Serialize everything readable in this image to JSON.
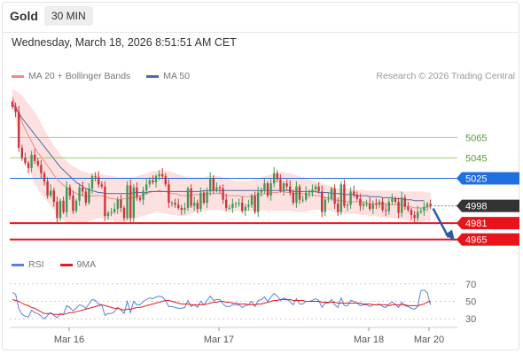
{
  "header": {
    "symbol": "Gold",
    "timeframe": "30 MIN",
    "datetime": "Wednesday, March 18, 2026 8:51:51 AM CET"
  },
  "credit": "Research © 2026 Trading Central",
  "colors": {
    "up": "#3c9a52",
    "down": "#c8363a",
    "ma20": "#f08a88",
    "ma50": "#4a6aa8",
    "band": "#fde0e0",
    "resistance": "#9bd06b",
    "pivot": "#1f6fe0",
    "support": "#e8141a",
    "last": "#333333",
    "arrow": "#2a5aa8",
    "rsi": "#5b7fe0",
    "rsi_ma": "#e01e1e"
  },
  "chart_data": [
    {
      "type": "candlestick",
      "legend": [
        {
          "name": "MA 20 + Bollinger Bands",
          "color": "#f08a88"
        },
        {
          "name": "MA 50",
          "color": "#4a6aa8"
        }
      ],
      "x_ticks": [
        "Mar 16",
        "Mar 17",
        "Mar 18",
        "Mar 20"
      ],
      "y_range": [
        4956,
        5113
      ],
      "levels": [
        {
          "value": 5065,
          "label": "5065",
          "kind": "resistance"
        },
        {
          "value": 5045,
          "label": "5045",
          "kind": "resistance"
        },
        {
          "value": 5025,
          "label": "5025",
          "kind": "pivot"
        },
        {
          "value": 4998,
          "label": "4998",
          "kind": "last"
        },
        {
          "value": 4981,
          "label": "4981",
          "kind": "support"
        },
        {
          "value": 4965,
          "label": "4965",
          "kind": "support"
        }
      ],
      "closes": [
        5095,
        5090,
        5055,
        5045,
        5040,
        5035,
        5048,
        5042,
        5038,
        5030,
        5022,
        5008,
        5013,
        5002,
        4986,
        5003,
        4992,
        5016,
        5008,
        4993,
        5003,
        5016,
        5012,
        5001,
        5015,
        5027,
        5026,
        5019,
        5017,
        4988,
        4991,
        4992,
        4995,
        5004,
        4996,
        4986,
        5018,
        4986,
        5016,
        5006,
        5004,
        5013,
        5019,
        5023,
        5021,
        5027,
        5029,
        5027,
        5019,
        5001,
        5001,
        4999,
        4996,
        4994,
        4996,
        5015,
        4998,
        5001,
        4995,
        5011,
        5001,
        5012,
        5025,
        5013,
        5016,
        5015,
        5004,
        4996,
        4996,
        5000,
        5000,
        5001,
        4993,
        4997,
        4999,
        5008,
        4992,
        5011,
        5013,
        5020,
        5008,
        5020,
        5030,
        5024,
        5013,
        5020,
        5017,
        5011,
        5001,
        5017,
        5004,
        5004,
        5011,
        5011,
        5014,
        5017,
        5012,
        4992,
        5004,
        5005,
        5015,
        5000,
        4992,
        5019,
        4998,
        4999,
        5012,
        5009,
        5005,
        4998,
        5000,
        5000,
        4995,
        5000,
        4999,
        5002,
        4994,
        4993,
        5002,
        5005,
        5002,
        4991,
        5006,
        4997,
        4994,
        4989,
        4986,
        4992,
        4993,
        4997,
        5000,
        4998
      ],
      "ma20": [
        5105,
        5096,
        5088,
        5080,
        5073,
        5067,
        5061,
        5055,
        5050,
        5046,
        5042,
        5037,
        5033,
        5028,
        5024,
        5021,
        5018,
        5016,
        5014,
        5012,
        5010,
        5009,
        5008,
        5007,
        5007,
        5008,
        5008,
        5008,
        5008,
        5007,
        5006,
        5005,
        5005,
        5004,
        5004,
        5005,
        5005,
        5006,
        5006,
        5007,
        5008,
        5009,
        5010,
        5011,
        5012,
        5012,
        5013,
        5012,
        5012,
        5011,
        5010,
        5010,
        5009,
        5008,
        5008,
        5008,
        5008,
        5009,
        5009,
        5009,
        5009,
        5010,
        5010,
        5010,
        5010,
        5010,
        5009,
        5008,
        5008,
        5008,
        5008,
        5008,
        5007,
        5007,
        5007,
        5008,
        5008,
        5009,
        5009,
        5010,
        5010,
        5011,
        5011,
        5011,
        5012,
        5012,
        5011,
        5011,
        5010,
        5010,
        5010,
        5010,
        5009,
        5009,
        5009,
        5008,
        5008,
        5007,
        5006,
        5006,
        5005,
        5004,
        5003,
        5003,
        5003,
        5002,
        5002,
        5002,
        5002,
        5002,
        5002,
        5001,
        5000,
        5000,
        5000,
        5000,
        5000,
        5000,
        4999,
        4999,
        4999,
        4999,
        4999,
        4998,
        4997,
        4997,
        4996,
        4996,
        4996,
        4996,
        4997,
        4997
      ],
      "bb_upper": [
        5112,
        5111,
        5109,
        5106,
        5102,
        5098,
        5094,
        5090,
        5085,
        5079,
        5073,
        5067,
        5062,
        5057,
        5052,
        5048,
        5045,
        5042,
        5039,
        5037,
        5035,
        5033,
        5032,
        5031,
        5030,
        5030,
        5030,
        5029,
        5029,
        5028,
        5028,
        5027,
        5027,
        5026,
        5026,
        5026,
        5026,
        5026,
        5026,
        5027,
        5028,
        5029,
        5030,
        5031,
        5032,
        5032,
        5033,
        5033,
        5032,
        5032,
        5031,
        5030,
        5029,
        5028,
        5027,
        5026,
        5026,
        5026,
        5026,
        5026,
        5026,
        5027,
        5027,
        5027,
        5027,
        5027,
        5026,
        5025,
        5024,
        5023,
        5022,
        5022,
        5022,
        5022,
        5022,
        5023,
        5024,
        5025,
        5026,
        5027,
        5028,
        5029,
        5030,
        5030,
        5031,
        5031,
        5030,
        5030,
        5029,
        5028,
        5027,
        5026,
        5025,
        5024,
        5023,
        5022,
        5021,
        5020,
        5019,
        5018,
        5017,
        5016,
        5015,
        5015,
        5015,
        5015,
        5014,
        5014,
        5014,
        5014,
        5014,
        5013,
        5013,
        5013,
        5013,
        5013,
        5013,
        5013,
        5013,
        5013,
        5013,
        5013,
        5012,
        5012,
        5012,
        5012,
        5012,
        5012,
        5012,
        5012,
        5011,
        5011
      ],
      "bb_lower": [
        5098,
        5082,
        5066,
        5054,
        5044,
        5036,
        5028,
        5020,
        5014,
        5010,
        5006,
        5002,
        4998,
        4994,
        4990,
        4987,
        4984,
        4982,
        4981,
        4980,
        4980,
        4980,
        4981,
        4982,
        4983,
        4984,
        4985,
        4986,
        4986,
        4986,
        4985,
        4984,
        4983,
        4982,
        4982,
        4982,
        4983,
        4984,
        4985,
        4986,
        4987,
        4988,
        4989,
        4990,
        4991,
        4992,
        4992,
        4991,
        4991,
        4990,
        4989,
        4989,
        4988,
        4988,
        4988,
        4989,
        4990,
        4991,
        4992,
        4992,
        4993,
        4993,
        4994,
        4994,
        4994,
        4994,
        4993,
        4992,
        4992,
        4992,
        4993,
        4993,
        4993,
        4993,
        4993,
        4993,
        4993,
        4993,
        4993,
        4993,
        4993,
        4993,
        4993,
        4993,
        4993,
        4993,
        4993,
        4993,
        4992,
        4992,
        4992,
        4992,
        4992,
        4993,
        4994,
        4994,
        4994,
        4994,
        4994,
        4993,
        4993,
        4992,
        4991,
        4991,
        4991,
        4990,
        4990,
        4990,
        4990,
        4989,
        4989,
        4989,
        4988,
        4988,
        4988,
        4987,
        4987,
        4986,
        4986,
        4986,
        4985,
        4985,
        4985,
        4984,
        4983,
        4983,
        4982,
        4982,
        4982,
        4983,
        4983,
        4984
      ],
      "ma50": [
        5098,
        5094,
        5089,
        5084,
        5080,
        5076,
        5072,
        5068,
        5064,
        5060,
        5056,
        5052,
        5048,
        5044,
        5040,
        5036,
        5033,
        5030,
        5027,
        5024,
        5021,
        5019,
        5017,
        5015,
        5014,
        5013,
        5012,
        5011,
        5011,
        5010,
        5010,
        5010,
        5010,
        5010,
        5010,
        5010,
        5010,
        5010,
        5011,
        5011,
        5011,
        5011,
        5011,
        5012,
        5012,
        5012,
        5012,
        5012,
        5012,
        5012,
        5012,
        5012,
        5012,
        5012,
        5012,
        5012,
        5012,
        5012,
        5012,
        5012,
        5013,
        5013,
        5013,
        5013,
        5013,
        5013,
        5013,
        5013,
        5013,
        5013,
        5013,
        5013,
        5013,
        5013,
        5013,
        5013,
        5013,
        5013,
        5013,
        5013,
        5013,
        5013,
        5013,
        5013,
        5013,
        5013,
        5013,
        5013,
        5012,
        5012,
        5012,
        5012,
        5012,
        5012,
        5012,
        5012,
        5011,
        5011,
        5011,
        5011,
        5010,
        5010,
        5010,
        5010,
        5009,
        5009,
        5009,
        5009,
        5008,
        5008,
        5008,
        5008,
        5007,
        5007,
        5007,
        5007,
        5006,
        5006,
        5006,
        5006,
        5005,
        5005,
        5005,
        5004,
        5004,
        5004,
        5003,
        5003,
        5003,
        5003
      ]
    },
    {
      "type": "line",
      "legend": [
        {
          "name": "RSI",
          "color": "#5b7fe0"
        },
        {
          "name": "9MA",
          "color": "#e01e1e"
        }
      ],
      "y_ticks": [
        70,
        50,
        30
      ],
      "y_range": [
        15,
        85
      ],
      "rsi": [
        60,
        58,
        42,
        35,
        33,
        32,
        40,
        37,
        36,
        33,
        30,
        34,
        37,
        34,
        31,
        36,
        35,
        45,
        43,
        39,
        42,
        46,
        45,
        42,
        47,
        52,
        51,
        47,
        46,
        34,
        36,
        36,
        38,
        43,
        40,
        36,
        50,
        37,
        50,
        46,
        46,
        50,
        52,
        54,
        53,
        55,
        56,
        55,
        51,
        44,
        44,
        43,
        42,
        42,
        43,
        51,
        44,
        46,
        43,
        50,
        46,
        51,
        56,
        51,
        52,
        52,
        47,
        44,
        44,
        46,
        46,
        46,
        43,
        45,
        46,
        50,
        44,
        51,
        52,
        55,
        50,
        55,
        59,
        56,
        51,
        54,
        52,
        50,
        46,
        53,
        47,
        47,
        50,
        50,
        51,
        53,
        51,
        43,
        48,
        48,
        52,
        46,
        43,
        54,
        45,
        45,
        51,
        50,
        48,
        45,
        46,
        46,
        44,
        46,
        46,
        47,
        44,
        43,
        47,
        49,
        47,
        43,
        49,
        45,
        44,
        42,
        41,
        44,
        62,
        63,
        60,
        46
      ],
      "ma9": [
        52,
        51,
        50,
        48,
        46,
        45,
        43,
        42,
        40,
        38,
        36,
        36,
        36,
        35,
        35,
        35,
        35,
        36,
        37,
        37,
        38,
        39,
        40,
        41,
        42,
        43,
        44,
        45,
        46,
        45,
        44,
        43,
        42,
        42,
        41,
        40,
        41,
        41,
        42,
        43,
        43,
        44,
        45,
        46,
        47,
        48,
        49,
        50,
        51,
        51,
        50,
        49,
        48,
        47,
        47,
        47,
        46,
        46,
        46,
        46,
        46,
        47,
        48,
        49,
        49,
        50,
        50,
        49,
        49,
        48,
        48,
        47,
        47,
        47,
        46,
        46,
        46,
        47,
        47,
        48,
        49,
        50,
        51,
        51,
        52,
        52,
        52,
        52,
        51,
        51,
        51,
        51,
        50,
        50,
        50,
        50,
        50,
        49,
        49,
        49,
        49,
        49,
        48,
        48,
        48,
        48,
        48,
        48,
        48,
        48,
        47,
        47,
        47,
        46,
        46,
        46,
        46,
        46,
        45,
        46,
        46,
        46,
        46,
        46,
        45,
        45,
        45,
        45,
        46,
        47,
        49,
        50
      ]
    }
  ]
}
